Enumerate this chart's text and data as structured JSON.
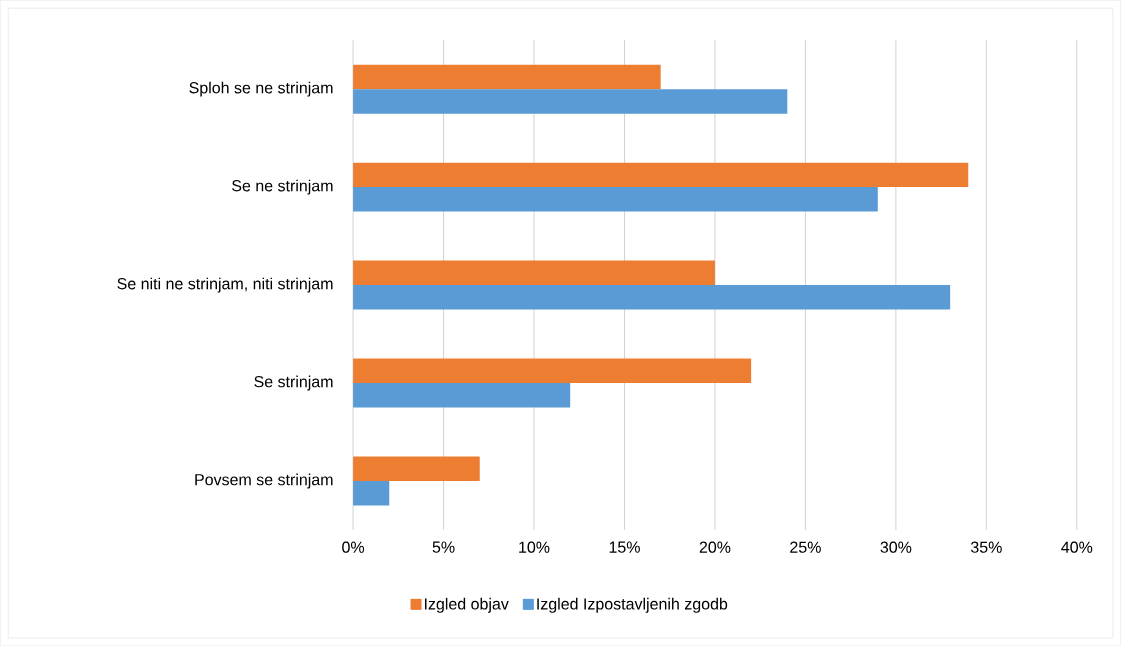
{
  "chart_data": {
    "type": "bar",
    "orientation": "horizontal",
    "categories": [
      "Sploh se ne strinjam",
      "Se ne strinjam",
      "Se niti ne strinjam, niti strinjam",
      "Se strinjam",
      "Povsem se strinjam"
    ],
    "series": [
      {
        "name": "Izgled objav",
        "color": "#ed7d31",
        "values": [
          17,
          34,
          20,
          22,
          7
        ]
      },
      {
        "name": "Izgled Izpostavljenih zgodb",
        "color": "#5b9bd5",
        "values": [
          24,
          29,
          33,
          12,
          2
        ]
      }
    ],
    "xlim": [
      0,
      40
    ],
    "xticks": [
      {
        "value": 0,
        "label": "0%"
      },
      {
        "value": 5,
        "label": "5%"
      },
      {
        "value": 10,
        "label": "10%"
      },
      {
        "value": 15,
        "label": "15%"
      },
      {
        "value": 20,
        "label": "20%"
      },
      {
        "value": 25,
        "label": "25%"
      },
      {
        "value": 30,
        "label": "30%"
      },
      {
        "value": 35,
        "label": "35%"
      },
      {
        "value": 40,
        "label": "40%"
      }
    ],
    "grid": "x",
    "legend": "bottom"
  }
}
